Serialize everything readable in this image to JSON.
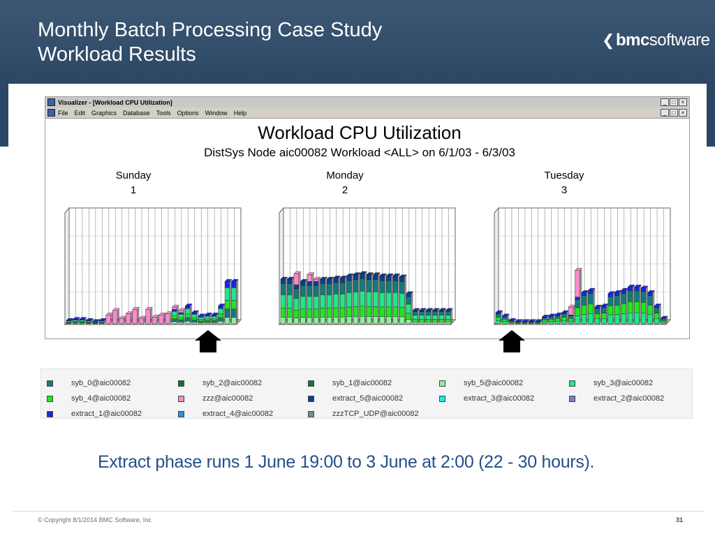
{
  "slide": {
    "title_line1": "Monthly Batch Processing Case Study",
    "title_line2": "Workload Results",
    "logo": {
      "chevron": "❮",
      "bold": "bmc",
      "normal": "software"
    },
    "caption": "Extract phase runs 1 June 19:00 to 3 June at 2:00 (22 - 30 hours).",
    "copyright": "© Copyright 8/1/2014 BMC Software, Inc",
    "page_number": "31",
    "header_color": "#33506e",
    "caption_color": "#244f8a"
  },
  "window": {
    "title": "Visualizer - [Workload CPU Utilization]",
    "menu": [
      "File",
      "Edit",
      "Graphics",
      "Database",
      "Tools",
      "Options",
      "Window",
      "Help"
    ],
    "buttons": [
      "_",
      "□",
      "×"
    ]
  },
  "chart_data": {
    "type": "bar",
    "stacked": true,
    "title": "Workload CPU Utilization",
    "subtitle": "DistSys Node aic00082 Workload <ALL> on 6/1/03 - 6/3/03",
    "grid": true,
    "panels": [
      {
        "day": "Sunday",
        "index": "1",
        "values": [
          3,
          4,
          4,
          3,
          2,
          3,
          8,
          12,
          5,
          9,
          13,
          5,
          13,
          6,
          8,
          9,
          15,
          12,
          16,
          10,
          7,
          8,
          8,
          16,
          38,
          38
        ],
        "mix": [
          [
            "extract_1",
            0.15
          ],
          [
            "syb_3",
            0.3
          ],
          [
            "syb_4",
            0.2
          ],
          [
            "syb_0",
            0.2
          ],
          [
            "syb_5",
            0.15
          ]
        ]
      },
      {
        "day": "Monday",
        "index": "2",
        "values": [
          40,
          40,
          45,
          38,
          44,
          40,
          40,
          40,
          41,
          41,
          43,
          44,
          45,
          44,
          44,
          43,
          43,
          43,
          42,
          27,
          12,
          12,
          12,
          12,
          12,
          12
        ],
        "mix": [
          [
            "extract_5",
            0.1
          ],
          [
            "syb_0",
            0.25
          ],
          [
            "syb_3",
            0.3
          ],
          [
            "syb_4",
            0.2
          ],
          [
            "syb_5",
            0.15
          ]
        ]
      },
      {
        "day": "Tuesday",
        "index": "3",
        "values": [
          10,
          7,
          3,
          2,
          2,
          2,
          2,
          6,
          7,
          8,
          10,
          15,
          48,
          28,
          30,
          15,
          16,
          27,
          28,
          30,
          33,
          33,
          32,
          28,
          16,
          5
        ],
        "mix": [
          [
            "extract_1",
            0.1
          ],
          [
            "syb_0",
            0.3
          ],
          [
            "syb_4",
            0.3
          ],
          [
            "syb_3",
            0.3
          ]
        ]
      }
    ],
    "pink_spikes": {
      "0": [
        0,
        0,
        0,
        0,
        0,
        0,
        8,
        12,
        5,
        9,
        13,
        5,
        13,
        6,
        8,
        9,
        2,
        2,
        0,
        0,
        0,
        0,
        0,
        0,
        0,
        0
      ],
      "1": [
        0,
        0,
        10,
        0,
        6,
        2,
        0,
        0,
        0,
        0,
        0,
        0,
        0,
        0,
        0,
        0,
        0,
        0,
        0,
        0,
        0,
        0,
        0,
        0,
        0,
        0
      ],
      "2": [
        0,
        0,
        0,
        0,
        0,
        0,
        0,
        0,
        0,
        0,
        0,
        7,
        24,
        0,
        0,
        0,
        0,
        0,
        0,
        0,
        0,
        0,
        0,
        0,
        0,
        0
      ]
    },
    "arrows": [
      {
        "panel": 0,
        "bar": 20
      },
      {
        "panel": 2,
        "bar": 2
      }
    ],
    "series": [
      {
        "name": "syb_0@aic00082",
        "color": "#137a7a"
      },
      {
        "name": "syb_2@aic00082",
        "color": "#0b7a1a"
      },
      {
        "name": "syb_1@aic00082",
        "color": "#0e7a3a"
      },
      {
        "name": "syb_5@aic00082",
        "color": "#8ff09a"
      },
      {
        "name": "syb_3@aic00082",
        "color": "#1ee888"
      },
      {
        "name": "syb_4@aic00082",
        "color": "#1ee81e"
      },
      {
        "name": "zzz@aic00082",
        "color": "#f58cc8"
      },
      {
        "name": "extract_5@aic00082",
        "color": "#123c8c"
      },
      {
        "name": "extract_3@aic00082",
        "color": "#1ee8e8"
      },
      {
        "name": "extract_2@aic00082",
        "color": "#7d7fc0"
      },
      {
        "name": "extract_1@aic00082",
        "color": "#1a28e0"
      },
      {
        "name": "extract_4@aic00082",
        "color": "#2a8ee8"
      },
      {
        "name": "zzzTCP_UDP@aic00082",
        "color": "#7d8a86"
      }
    ]
  }
}
